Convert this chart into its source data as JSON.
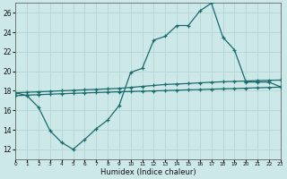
{
  "xlabel": "Humidex (Indice chaleur)",
  "bg_color": "#cde8e8",
  "grid_color": "#b8d8d8",
  "line_color": "#1a6b6b",
  "x_min": 0,
  "x_max": 23,
  "y_min": 11,
  "y_max": 27,
  "yticks": [
    12,
    14,
    16,
    18,
    20,
    22,
    24,
    26
  ],
  "xticks": [
    0,
    1,
    2,
    3,
    4,
    5,
    6,
    7,
    8,
    9,
    10,
    11,
    12,
    13,
    14,
    15,
    16,
    17,
    18,
    19,
    20,
    21,
    22,
    23
  ],
  "series1_x": [
    0,
    1,
    2,
    3,
    4,
    5,
    6,
    7,
    8,
    9,
    10,
    11,
    12,
    13,
    14,
    15,
    16,
    17,
    18,
    19,
    20,
    21,
    22,
    23
  ],
  "series1_y": [
    17.8,
    17.5,
    16.3,
    13.9,
    12.7,
    12.0,
    13.0,
    14.1,
    15.0,
    16.5,
    19.9,
    20.3,
    23.2,
    23.6,
    24.7,
    24.7,
    26.2,
    27.0,
    23.5,
    22.2,
    18.9,
    18.9,
    18.9,
    18.4
  ],
  "series2_x": [
    0,
    1,
    2,
    3,
    4,
    5,
    6,
    7,
    8,
    9,
    10,
    11,
    12,
    13,
    14,
    15,
    16,
    17,
    18,
    19,
    20,
    21,
    22,
    23
  ],
  "series2_y": [
    17.8,
    17.85,
    17.9,
    17.95,
    18.0,
    18.05,
    18.1,
    18.15,
    18.2,
    18.25,
    18.35,
    18.45,
    18.55,
    18.65,
    18.7,
    18.75,
    18.82,
    18.88,
    18.93,
    18.97,
    19.0,
    19.05,
    19.08,
    19.1
  ],
  "series3_x": [
    0,
    1,
    2,
    3,
    4,
    5,
    6,
    7,
    8,
    9,
    10,
    11,
    12,
    13,
    14,
    15,
    16,
    17,
    18,
    19,
    20,
    21,
    22,
    23
  ],
  "series3_y": [
    17.5,
    17.55,
    17.6,
    17.65,
    17.7,
    17.74,
    17.78,
    17.82,
    17.86,
    17.9,
    17.93,
    17.96,
    17.99,
    18.02,
    18.06,
    18.1,
    18.13,
    18.17,
    18.2,
    18.23,
    18.27,
    18.31,
    18.34,
    18.38
  ]
}
